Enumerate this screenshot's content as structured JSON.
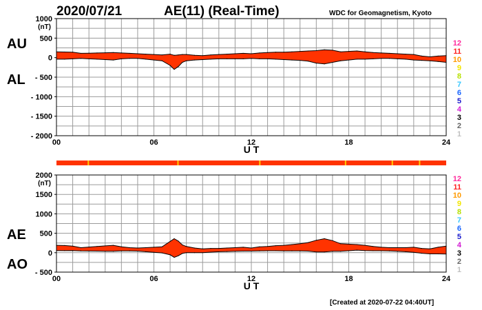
{
  "header": {
    "date": "2020/07/21",
    "title": "AE(11) (Real-Time)",
    "source": "WDC for Geomagnetism, Kyoto"
  },
  "footer": {
    "created": "[Created at 2020-07-22 04:40UT]"
  },
  "colors": {
    "fill": "#ff3300",
    "frame": "#000000",
    "grid": "#9a9a9a",
    "status_bar": "#ff3300",
    "status_bar_highlight": "#ffcc00"
  },
  "legend_stations": [
    {
      "label": "12",
      "color": "#ff2a9c"
    },
    {
      "label": "11",
      "color": "#ff2020"
    },
    {
      "label": "10",
      "color": "#ff9a00"
    },
    {
      "label": "9",
      "color": "#f2e600"
    },
    {
      "label": "8",
      "color": "#b6e000"
    },
    {
      "label": "7",
      "color": "#33c6ff"
    },
    {
      "label": "6",
      "color": "#1a66ff"
    },
    {
      "label": "5",
      "color": "#1a1acc"
    },
    {
      "label": "4",
      "color": "#d21ad2"
    },
    {
      "label": "3",
      "color": "#000000"
    },
    {
      "label": "2",
      "color": "#666666"
    },
    {
      "label": "1",
      "color": "#c0c0c0"
    }
  ],
  "chart_data": [
    {
      "id": "au_al",
      "type": "area",
      "upper_label": "AU",
      "lower_label": "AL",
      "unit": "(nT)",
      "xlabel": "U T",
      "xlim": [
        0,
        24
      ],
      "ylim": [
        -2000,
        1000
      ],
      "xticks": [
        0,
        6,
        12,
        18,
        24
      ],
      "xtick_labels": [
        "00",
        "06",
        "12",
        "18",
        "24"
      ],
      "yticks": [
        1000,
        500,
        0,
        -500,
        -1000,
        -1500,
        -2000
      ],
      "ytick_labels": [
        "1000",
        "500",
        "0",
        "- 500",
        "- 1000",
        "- 1500",
        "- 2000"
      ],
      "grid": true,
      "x": [
        0,
        0.5,
        1,
        1.5,
        2,
        2.5,
        3,
        3.5,
        4,
        4.5,
        5,
        5.5,
        6,
        6.5,
        7,
        7.25,
        7.5,
        7.75,
        8,
        8.5,
        9,
        9.5,
        10,
        10.5,
        11,
        11.5,
        12,
        12.5,
        13,
        13.5,
        14,
        14.5,
        15,
        15.5,
        16,
        16.5,
        17,
        17.5,
        18,
        18.5,
        19,
        19.5,
        20,
        20.5,
        21,
        21.5,
        22,
        22.5,
        23,
        23.5,
        24
      ],
      "series": [
        {
          "name": "AU",
          "values": [
            150,
            145,
            140,
            110,
            115,
            120,
            125,
            130,
            120,
            110,
            100,
            90,
            80,
            70,
            90,
            60,
            70,
            80,
            80,
            60,
            50,
            70,
            80,
            90,
            100,
            110,
            100,
            120,
            130,
            140,
            140,
            150,
            160,
            170,
            180,
            200,
            190,
            150,
            160,
            170,
            150,
            130,
            120,
            110,
            100,
            90,
            80,
            40,
            20,
            40,
            50
          ]
        },
        {
          "name": "AL",
          "values": [
            -40,
            -40,
            -30,
            -20,
            -30,
            -40,
            -50,
            -60,
            -30,
            -20,
            -20,
            -40,
            -60,
            -80,
            -200,
            -300,
            -230,
            -120,
            -80,
            -60,
            -50,
            -40,
            -30,
            -30,
            -30,
            -30,
            -20,
            -30,
            -30,
            -40,
            -50,
            -60,
            -70,
            -90,
            -140,
            -160,
            -120,
            -80,
            -60,
            -40,
            -40,
            -30,
            -20,
            -20,
            -30,
            -40,
            -60,
            -70,
            -80,
            -100,
            -120
          ]
        }
      ]
    },
    {
      "id": "ae_ao",
      "type": "area",
      "upper_label": "AE",
      "lower_label": "AO",
      "unit": "(nT)",
      "xlabel": "U T",
      "xlim": [
        0,
        24
      ],
      "ylim": [
        -500,
        2000
      ],
      "xticks": [
        0,
        6,
        12,
        18,
        24
      ],
      "xtick_labels": [
        "00",
        "06",
        "12",
        "18",
        "24"
      ],
      "yticks": [
        2000,
        1500,
        1000,
        500,
        0,
        -500
      ],
      "ytick_labels": [
        "2000",
        "1500",
        "1000",
        "500",
        "0",
        "- 500"
      ],
      "grid": true,
      "x": [
        0,
        0.5,
        1,
        1.5,
        2,
        2.5,
        3,
        3.5,
        4,
        4.5,
        5,
        5.5,
        6,
        6.5,
        7,
        7.25,
        7.5,
        7.75,
        8,
        8.5,
        9,
        9.5,
        10,
        10.5,
        11,
        11.5,
        12,
        12.5,
        13,
        13.5,
        14,
        14.5,
        15,
        15.5,
        16,
        16.5,
        17,
        17.5,
        18,
        18.5,
        19,
        19.5,
        20,
        20.5,
        21,
        21.5,
        22,
        22.5,
        23,
        23.5,
        24
      ],
      "series": [
        {
          "name": "AE",
          "values": [
            190,
            185,
            170,
            130,
            145,
            160,
            175,
            190,
            150,
            130,
            120,
            130,
            140,
            150,
            290,
            360,
            300,
            200,
            160,
            120,
            100,
            110,
            110,
            120,
            130,
            140,
            120,
            150,
            160,
            180,
            190,
            210,
            230,
            260,
            320,
            360,
            310,
            230,
            220,
            210,
            190,
            160,
            140,
            130,
            130,
            130,
            140,
            110,
            100,
            140,
            170
          ]
        },
        {
          "name": "AO",
          "values": [
            55,
            52,
            55,
            45,
            42,
            40,
            37,
            35,
            45,
            45,
            40,
            25,
            10,
            -5,
            -55,
            -120,
            -80,
            -20,
            0,
            0,
            0,
            15,
            25,
            30,
            35,
            40,
            40,
            45,
            50,
            50,
            45,
            45,
            45,
            40,
            20,
            20,
            35,
            35,
            50,
            65,
            55,
            50,
            50,
            45,
            35,
            25,
            10,
            -15,
            -30,
            -30,
            -35
          ]
        }
      ]
    }
  ]
}
